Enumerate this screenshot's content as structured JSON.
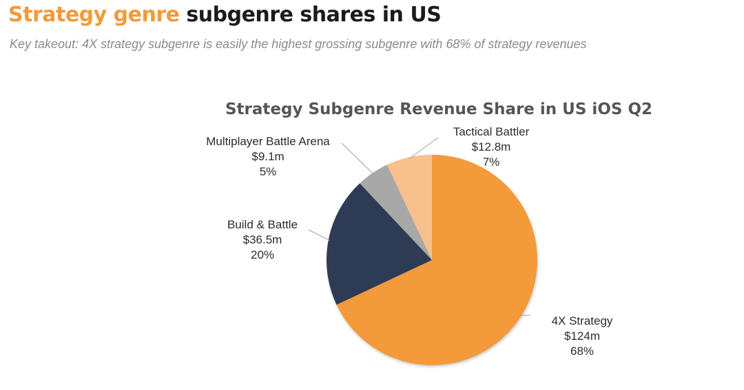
{
  "header": {
    "title_highlight": "Strategy genre",
    "title_rest": "subgenre shares in US",
    "subtitle": "Key takeout: 4X strategy subgenre is easily the highest grossing subgenre with 68% of strategy revenues"
  },
  "chart_data": {
    "type": "pie",
    "title": "Strategy Subgenre Revenue Share in US iOS Q2",
    "unit": "$m",
    "start": "12 o'clock",
    "direction": "clockwise",
    "slices": [
      {
        "name": "4X Strategy",
        "value": 124,
        "value_label": "$124m",
        "percent": 68,
        "percent_label": "68%",
        "color": "#f39a3a"
      },
      {
        "name": "Build & Battle",
        "value": 36.5,
        "value_label": "$36.5m",
        "percent": 20,
        "percent_label": "20%",
        "color": "#2d3a54"
      },
      {
        "name": "Multiplayer Battle Arena",
        "value": 9.1,
        "value_label": "$9.1m",
        "percent": 5,
        "percent_label": "5%",
        "color": "#a8a8a8"
      },
      {
        "name": "Tactical Battler",
        "value": 12.8,
        "value_label": "$12.8m",
        "percent": 7,
        "percent_label": "7%",
        "color": "#f8c08c"
      }
    ]
  }
}
